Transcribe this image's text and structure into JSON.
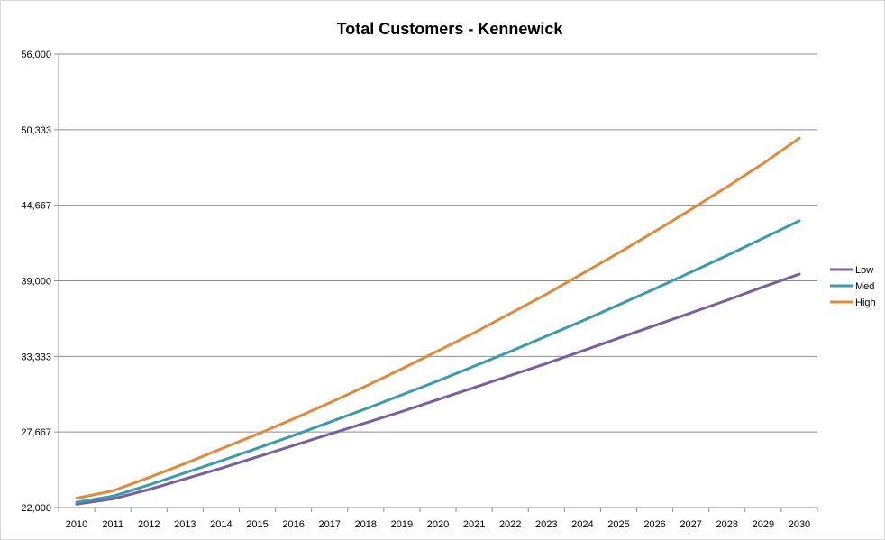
{
  "chart_data": {
    "type": "line",
    "title": "Total Customers - Kennewick",
    "xlabel": "",
    "ylabel": "",
    "x": [
      2010,
      2011,
      2012,
      2013,
      2014,
      2015,
      2016,
      2017,
      2018,
      2019,
      2020,
      2021,
      2022,
      2023,
      2024,
      2025,
      2026,
      2027,
      2028,
      2029,
      2030
    ],
    "x_tick_labels": [
      "2010",
      "2011",
      "2012",
      "2013",
      "2014",
      "2015",
      "2016",
      "2017",
      "2018",
      "2019",
      "2020",
      "2021",
      "2022",
      "2023",
      "2024",
      "2025",
      "2026",
      "2027",
      "2028",
      "2029",
      "2030"
    ],
    "ylim": [
      22000,
      56000
    ],
    "y_ticks": [
      22000,
      27667,
      33333,
      39000,
      44667,
      50333,
      56000
    ],
    "y_tick_labels": [
      "22,000",
      "27,667",
      "33,333",
      "39,000",
      "44,667",
      "50,333",
      "56,000"
    ],
    "grid": "horizontal",
    "legend_position": "right",
    "series": [
      {
        "name": "Low",
        "color": "#7a5ea2",
        "values": [
          22250,
          22650,
          23350,
          24150,
          24950,
          25800,
          26650,
          27500,
          28350,
          29200,
          30100,
          31000,
          31900,
          32800,
          33750,
          34700,
          35650,
          36600,
          37550,
          38550,
          39500
        ]
      },
      {
        "name": "Med",
        "color": "#3a9bb0",
        "values": [
          22400,
          22850,
          23700,
          24600,
          25500,
          26450,
          27400,
          28400,
          29400,
          30450,
          31500,
          32600,
          33700,
          34850,
          36000,
          37200,
          38400,
          39650,
          40900,
          42200,
          43500
        ]
      },
      {
        "name": "High",
        "color": "#e08a3c",
        "values": [
          22700,
          23250,
          24250,
          25300,
          26400,
          27500,
          28650,
          29850,
          31100,
          32400,
          33750,
          35100,
          36550,
          38000,
          39550,
          41100,
          42700,
          44350,
          46050,
          47800,
          49700
        ]
      }
    ]
  }
}
